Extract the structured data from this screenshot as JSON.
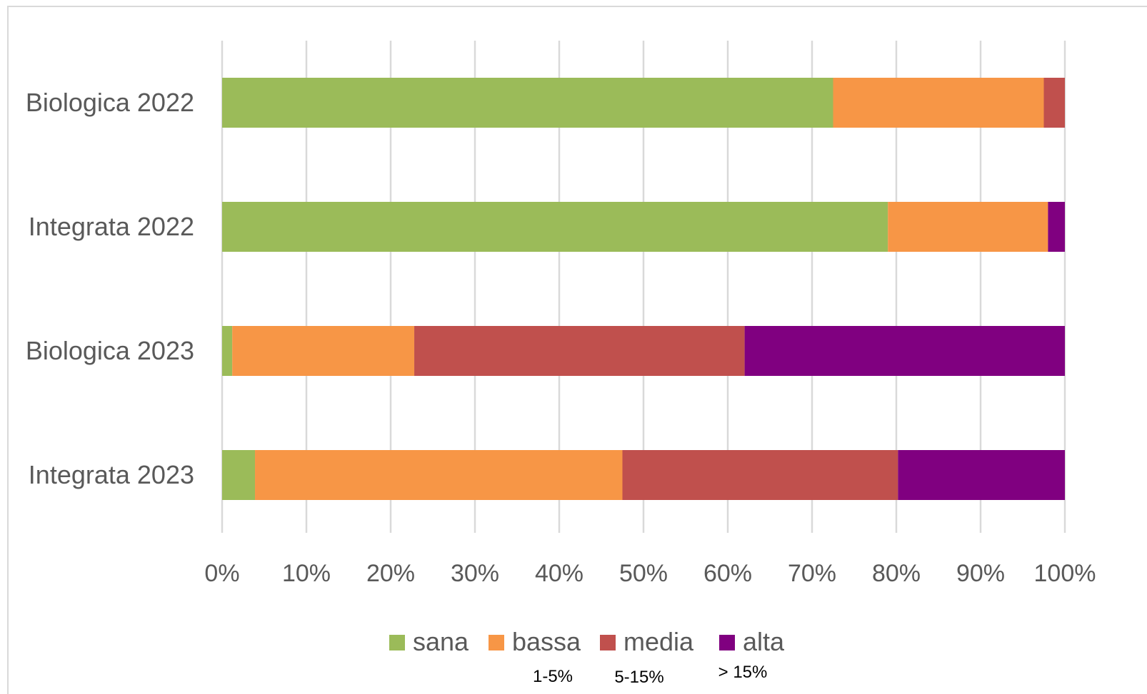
{
  "chart_data": {
    "type": "bar",
    "orientation": "horizontal",
    "stacked": "percent",
    "categories": [
      "Biologica 2022",
      "Integrata 2022",
      "Biologica 2023",
      "Integrata 2023"
    ],
    "series": [
      {
        "name": "sana",
        "color": "#9bbb59",
        "values": [
          72.5,
          79.0,
          1.2,
          3.9
        ]
      },
      {
        "name": "bassa",
        "color": "#f79646",
        "values": [
          25.0,
          19.0,
          21.6,
          43.6
        ]
      },
      {
        "name": "media",
        "color": "#c0504d",
        "values": [
          2.5,
          0.0,
          39.2,
          32.7
        ]
      },
      {
        "name": "alta",
        "color": "#800080",
        "values": [
          0.0,
          2.0,
          38.0,
          19.8
        ]
      }
    ],
    "x_ticks": [
      "0%",
      "10%",
      "20%",
      "30%",
      "40%",
      "50%",
      "60%",
      "70%",
      "80%",
      "90%",
      "100%"
    ],
    "xlim": [
      0,
      100
    ],
    "grid": "vertical",
    "legend_position": "bottom",
    "legend_annotations": [
      "1-5%",
      "5-15%",
      "> 15%"
    ]
  }
}
